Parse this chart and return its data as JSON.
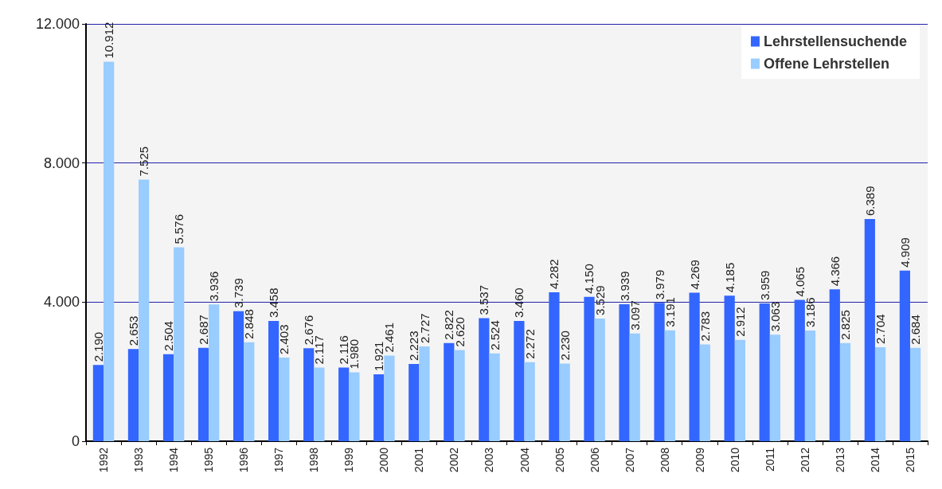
{
  "chart_data": {
    "type": "bar",
    "categories": [
      "1992",
      "1993",
      "1994",
      "1995",
      "1996",
      "1997",
      "1998",
      "1999",
      "2000",
      "2001",
      "2002",
      "2003",
      "2004",
      "2005",
      "2006",
      "2007",
      "2008",
      "2009",
      "2010",
      "2011",
      "2012",
      "2013",
      "2014",
      "2015"
    ],
    "series": [
      {
        "name": "Lehrstellensuchende",
        "color": "#3366ff",
        "values": [
          2190,
          2653,
          2504,
          2687,
          3739,
          3458,
          2676,
          2116,
          1921,
          2223,
          2822,
          3537,
          3460,
          4282,
          4150,
          3939,
          3979,
          4269,
          4185,
          3959,
          4065,
          4366,
          6389,
          4909
        ],
        "value_labels": [
          "2.190",
          "2.653",
          "2.504",
          "2.687",
          "3.739",
          "3.458",
          "2.676",
          "2.116",
          "1.921",
          "2.223",
          "2.822",
          "3.537",
          "3.460",
          "4.282",
          "4.150",
          "3.939",
          "3.979",
          "4.269",
          "4.185",
          "3.959",
          "4.065",
          "4.366",
          "6.389",
          "4.909"
        ]
      },
      {
        "name": "Offene Lehrstellen",
        "color": "#99ccff",
        "values": [
          10912,
          7525,
          5576,
          3936,
          2848,
          2403,
          2117,
          1980,
          2461,
          2727,
          2620,
          2524,
          2272,
          2230,
          3529,
          3097,
          3191,
          2783,
          2912,
          3063,
          3186,
          2825,
          2704,
          2684
        ],
        "value_labels": [
          "10.912",
          "7.525",
          "5.576",
          "3.936",
          "2.848",
          "2.403",
          "2.117",
          "1.980",
          "2.461",
          "2.727",
          "2.620",
          "2.524",
          "2.272",
          "2.230",
          "3.529",
          "3.097",
          "3.191",
          "2.783",
          "2.912",
          "3.063",
          "3.186",
          "2.825",
          "2.704",
          "2.684"
        ]
      }
    ],
    "ylim": [
      0,
      12000
    ],
    "yticks": [
      0,
      {
        "value": 4000,
        "label": "4.000"
      },
      {
        "value": 8000,
        "label": "8.000"
      },
      {
        "value": 12000,
        "label": "12.000"
      }
    ],
    "grid": "y",
    "legend": "top right"
  }
}
